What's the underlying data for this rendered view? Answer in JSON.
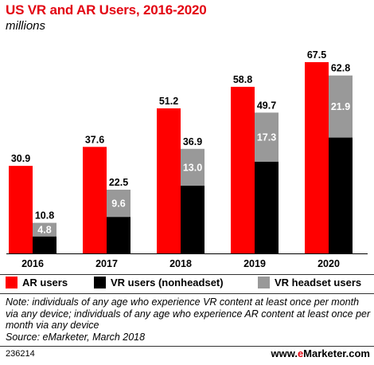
{
  "header": {
    "title": "US VR and AR Users, 2016-2020",
    "subtitle": "millions"
  },
  "chart_data": {
    "type": "bar",
    "title": "US VR and AR Users, 2016-2020",
    "subtitle": "millions",
    "categories": [
      "2016",
      "2017",
      "2018",
      "2019",
      "2020"
    ],
    "ylim": [
      0,
      72
    ],
    "grid": false,
    "legend_position": "bottom",
    "series": [
      {
        "name": "AR users",
        "color": "#ff0000",
        "values": [
          30.9,
          37.6,
          51.2,
          58.8,
          67.5
        ],
        "stack": "ar"
      },
      {
        "name": "VR users (nonheadset)",
        "color": "#000000",
        "values": [
          6.0,
          12.9,
          23.9,
          32.4,
          40.9
        ],
        "stack": "vr"
      },
      {
        "name": "VR headset users",
        "color": "#999999",
        "values": [
          4.8,
          9.6,
          13.0,
          17.3,
          21.9
        ],
        "stack": "vr"
      }
    ],
    "vr_totals": [
      10.8,
      22.5,
      36.9,
      49.7,
      62.8
    ],
    "headset_labels": [
      "4.8",
      "9.6",
      "13.0",
      "17.3",
      "21.9"
    ],
    "ar_labels": [
      "30.9",
      "37.6",
      "51.2",
      "58.8",
      "67.5"
    ],
    "vr_total_labels": [
      "10.8",
      "22.5",
      "36.9",
      "49.7",
      "62.8"
    ]
  },
  "legend": {
    "items": [
      {
        "label": "AR users",
        "color": "#ff0000"
      },
      {
        "label": "VR users (nonheadset)",
        "color": "#000000"
      },
      {
        "label": "VR headset users",
        "color": "#999999"
      }
    ]
  },
  "footer": {
    "note": "Note: individuals of any age who experience VR content at least once per month via any device; individuals of any age who experience AR content at least once per month via any device",
    "source": "Source: eMarketer, March 2018",
    "id": "236214",
    "brand_prefix": "www.",
    "brand_e": "e",
    "brand_rest": "Marketer.com"
  }
}
